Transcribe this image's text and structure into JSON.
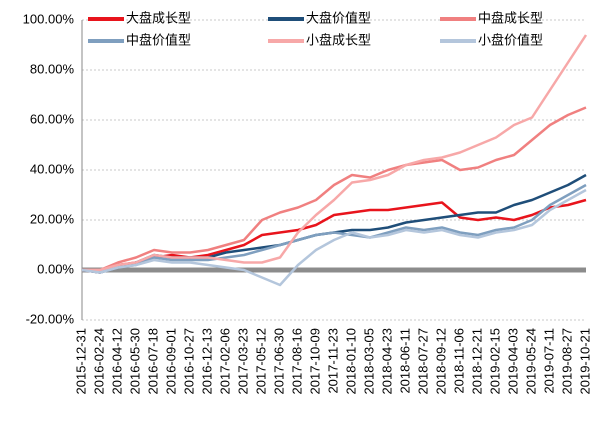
{
  "chart_data": {
    "type": "line",
    "categories": [
      "2015-12-31",
      "2016-02-24",
      "2016-04-12",
      "2016-05-30",
      "2016-07-18",
      "2016-09-01",
      "2016-10-27",
      "2016-12-13",
      "2017-02-06",
      "2017-03-23",
      "2017-05-12",
      "2017-06-30",
      "2017-08-16",
      "2017-10-09",
      "2017-11-23",
      "2018-01-10",
      "2018-03-05",
      "2018-04-23",
      "2018-06-11",
      "2018-07-27",
      "2018-09-12",
      "2018-11-06",
      "2018-12-21",
      "2019-02-15",
      "2019-04-03",
      "2019-05-24",
      "2019-07-11",
      "2019-08-27",
      "2019-10-21"
    ],
    "series": [
      {
        "name": "大盘成长型",
        "color": "#e8141c",
        "values": [
          0,
          -1,
          2,
          3,
          5,
          6,
          5,
          6,
          8,
          10,
          14,
          15,
          16,
          18,
          22,
          23,
          24,
          24,
          25,
          26,
          27,
          21,
          20,
          21,
          20,
          22,
          25,
          26,
          28
        ]
      },
      {
        "name": "大盘价值型",
        "color": "#1f4e79",
        "values": [
          0,
          -1,
          1,
          3,
          6,
          5,
          5,
          5,
          7,
          8,
          9,
          10,
          12,
          14,
          15,
          16,
          16,
          17,
          19,
          20,
          21,
          22,
          23,
          23,
          26,
          28,
          31,
          34,
          38
        ]
      },
      {
        "name": "中盘成长型",
        "color": "#f08080",
        "values": [
          0,
          0,
          3,
          5,
          8,
          7,
          7,
          8,
          10,
          12,
          20,
          23,
          25,
          28,
          34,
          38,
          37,
          40,
          42,
          43,
          44,
          40,
          41,
          44,
          46,
          52,
          58,
          62,
          65
        ]
      },
      {
        "name": "中盘价值型",
        "color": "#7f9fbf",
        "values": [
          0,
          -1,
          1,
          2,
          5,
          4,
          4,
          4,
          5,
          6,
          8,
          10,
          12,
          14,
          15,
          14,
          13,
          15,
          17,
          16,
          17,
          15,
          14,
          16,
          17,
          20,
          26,
          30,
          34
        ]
      },
      {
        "name": "小盘成长型",
        "color": "#f7a8a8",
        "values": [
          0,
          0,
          2,
          3,
          6,
          5,
          5,
          5,
          4,
          3,
          3,
          5,
          15,
          22,
          28,
          35,
          36,
          38,
          42,
          44,
          45,
          47,
          50,
          53,
          58,
          61,
          72,
          83,
          94
        ]
      },
      {
        "name": "小盘价值型",
        "color": "#b4c6dc",
        "values": [
          0,
          -1,
          1,
          2,
          4,
          3,
          3,
          2,
          1,
          0,
          -3,
          -6,
          2,
          8,
          12,
          15,
          13,
          14,
          16,
          15,
          16,
          14,
          13,
          15,
          16,
          18,
          24,
          28,
          32
        ]
      }
    ],
    "ylim": [
      -20,
      100
    ],
    "yticks": [
      {
        "value": -20,
        "label": "-20.00%"
      },
      {
        "value": 0,
        "label": "0.00%"
      },
      {
        "value": 20,
        "label": "20.00%"
      },
      {
        "value": 40,
        "label": "40.00%"
      },
      {
        "value": 60,
        "label": "60.00%"
      },
      {
        "value": 80,
        "label": "80.00%"
      },
      {
        "value": 100,
        "label": "100.00%"
      }
    ],
    "grid": true
  }
}
